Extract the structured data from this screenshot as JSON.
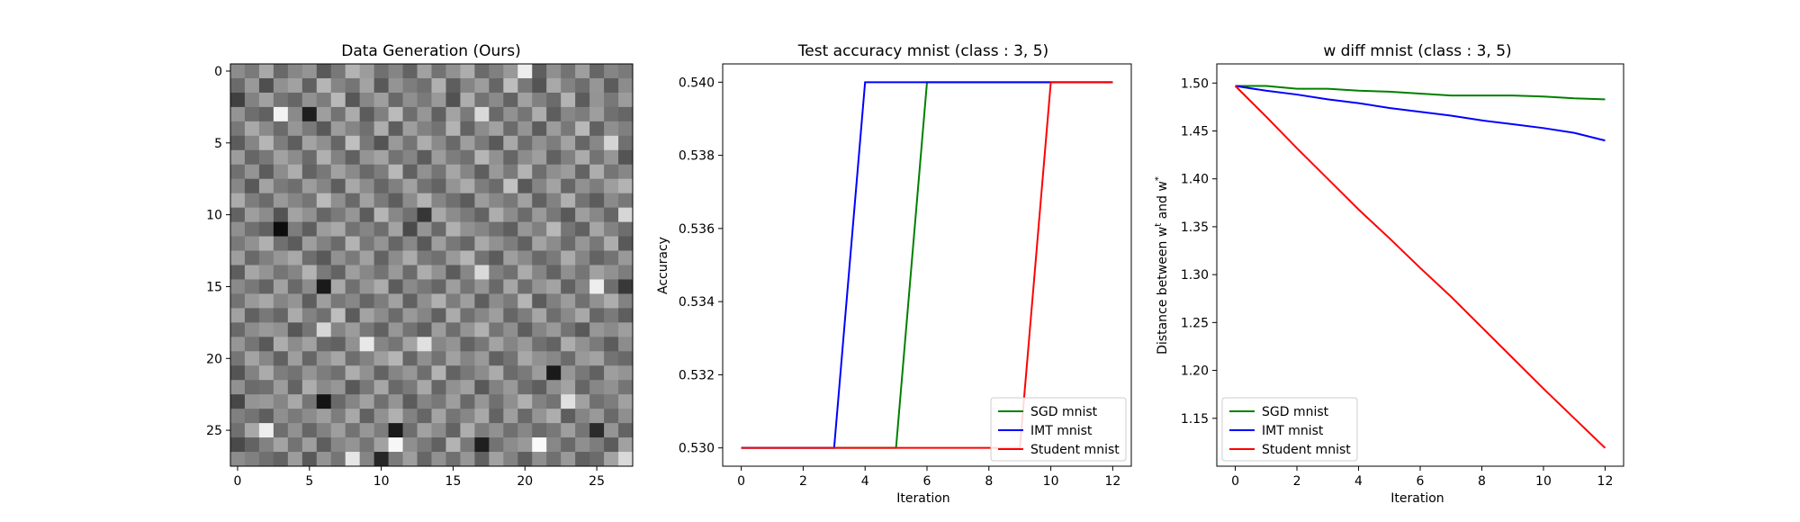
{
  "chart_data": [
    {
      "type": "heatmap",
      "title": "Data Generation (Ours)",
      "xlabel": "",
      "ylabel": "",
      "xticks": [
        0,
        5,
        10,
        15,
        20,
        25
      ],
      "yticks": [
        0,
        5,
        10,
        15,
        20,
        25
      ],
      "colormap": "gray",
      "rows": 28,
      "cols": 28,
      "values": [
        [
          0.55,
          0.48,
          0.66,
          0.41,
          0.53,
          0.58,
          0.35,
          0.47,
          0.7,
          0.61,
          0.44,
          0.52,
          0.39,
          0.63,
          0.45,
          0.57,
          0.68,
          0.42,
          0.5,
          0.6,
          0.93,
          0.37,
          0.56,
          0.45,
          0.62,
          0.4,
          0.52,
          0.48
        ],
        [
          0.42,
          0.6,
          0.31,
          0.57,
          0.63,
          0.38,
          0.71,
          0.52,
          0.46,
          0.64,
          0.35,
          0.58,
          0.49,
          0.44,
          0.69,
          0.37,
          0.52,
          0.61,
          0.4,
          0.74,
          0.47,
          0.33,
          0.66,
          0.51,
          0.43,
          0.59,
          0.36,
          0.55
        ],
        [
          0.25,
          0.51,
          0.63,
          0.46,
          0.4,
          0.57,
          0.49,
          0.72,
          0.34,
          0.53,
          0.62,
          0.41,
          0.56,
          0.48,
          0.6,
          0.32,
          0.68,
          0.45,
          0.54,
          0.39,
          0.63,
          0.5,
          0.42,
          0.7,
          0.36,
          0.58,
          0.47,
          0.61
        ],
        [
          0.58,
          0.43,
          0.38,
          0.95,
          0.54,
          0.12,
          0.62,
          0.45,
          0.67,
          0.36,
          0.5,
          0.73,
          0.43,
          0.59,
          0.38,
          0.64,
          0.48,
          0.85,
          0.41,
          0.57,
          0.46,
          0.68,
          0.37,
          0.53,
          0.49,
          0.62,
          0.44,
          0.4
        ],
        [
          0.47,
          0.66,
          0.54,
          0.42,
          0.59,
          0.48,
          0.35,
          0.61,
          0.52,
          0.44,
          0.68,
          0.37,
          0.62,
          0.51,
          0.45,
          0.7,
          0.39,
          0.55,
          0.63,
          0.42,
          0.58,
          0.36,
          0.61,
          0.47,
          0.72,
          0.38,
          0.56,
          0.5
        ],
        [
          0.36,
          0.52,
          0.71,
          0.49,
          0.37,
          0.64,
          0.56,
          0.4,
          0.75,
          0.47,
          0.33,
          0.6,
          0.46,
          0.68,
          0.54,
          0.41,
          0.62,
          0.48,
          0.35,
          0.66,
          0.43,
          0.57,
          0.49,
          0.64,
          0.4,
          0.53,
          0.83,
          0.44
        ],
        [
          0.61,
          0.4,
          0.47,
          0.63,
          0.55,
          0.42,
          0.69,
          0.51,
          0.38,
          0.58,
          0.64,
          0.45,
          0.52,
          0.36,
          0.61,
          0.49,
          0.44,
          0.71,
          0.57,
          0.4,
          0.55,
          0.62,
          0.38,
          0.5,
          0.67,
          0.45,
          0.59,
          0.33
        ],
        [
          0.44,
          0.58,
          0.36,
          0.55,
          0.68,
          0.39,
          0.47,
          0.63,
          0.54,
          0.41,
          0.49,
          0.72,
          0.38,
          0.57,
          0.46,
          0.65,
          0.52,
          0.37,
          0.6,
          0.48,
          0.7,
          0.43,
          0.56,
          0.61,
          0.39,
          0.68,
          0.46,
          0.53
        ],
        [
          0.53,
          0.35,
          0.64,
          0.48,
          0.43,
          0.61,
          0.52,
          0.37,
          0.66,
          0.55,
          0.4,
          0.5,
          0.63,
          0.45,
          0.39,
          0.58,
          0.67,
          0.49,
          0.42,
          0.76,
          0.35,
          0.52,
          0.64,
          0.4,
          0.57,
          0.49,
          0.62,
          0.7
        ],
        [
          0.67,
          0.49,
          0.42,
          0.6,
          0.52,
          0.46,
          0.73,
          0.56,
          0.41,
          0.63,
          0.48,
          0.37,
          0.55,
          0.7,
          0.52,
          0.44,
          0.36,
          0.61,
          0.53,
          0.47,
          0.63,
          0.38,
          0.51,
          0.69,
          0.45,
          0.36,
          0.54,
          0.47
        ],
        [
          0.39,
          0.62,
          0.55,
          0.33,
          0.64,
          0.57,
          0.4,
          0.48,
          0.59,
          0.36,
          0.71,
          0.53,
          0.44,
          0.21,
          0.66,
          0.55,
          0.48,
          0.39,
          0.68,
          0.55,
          0.42,
          0.6,
          0.47,
          0.35,
          0.62,
          0.53,
          0.4,
          0.84
        ],
        [
          0.56,
          0.44,
          0.38,
          0.05,
          0.49,
          0.37,
          0.61,
          0.66,
          0.45,
          0.52,
          0.43,
          0.64,
          0.29,
          0.58,
          0.41,
          0.69,
          0.57,
          0.52,
          0.44,
          0.37,
          0.59,
          0.5,
          0.72,
          0.46,
          0.38,
          0.65,
          0.51,
          0.43
        ],
        [
          0.48,
          0.57,
          0.69,
          0.44,
          0.36,
          0.62,
          0.51,
          0.42,
          0.7,
          0.47,
          0.58,
          0.4,
          0.53,
          0.35,
          0.62,
          0.47,
          0.4,
          0.66,
          0.57,
          0.49,
          0.38,
          0.64,
          0.55,
          0.42,
          0.59,
          0.47,
          0.68,
          0.35
        ],
        [
          0.62,
          0.41,
          0.5,
          0.59,
          0.66,
          0.43,
          0.35,
          0.57,
          0.48,
          0.63,
          0.39,
          0.55,
          0.67,
          0.48,
          0.44,
          0.6,
          0.71,
          0.45,
          0.36,
          0.62,
          0.54,
          0.41,
          0.48,
          0.67,
          0.52,
          0.39,
          0.45,
          0.6
        ],
        [
          0.37,
          0.65,
          0.58,
          0.46,
          0.52,
          0.7,
          0.48,
          0.39,
          0.62,
          0.53,
          0.45,
          0.6,
          0.42,
          0.68,
          0.57,
          0.36,
          0.53,
          0.85,
          0.5,
          0.44,
          0.67,
          0.52,
          0.39,
          0.56,
          0.46,
          0.63,
          0.57,
          0.49
        ],
        [
          0.54,
          0.47,
          0.39,
          0.63,
          0.41,
          0.55,
          0.1,
          0.66,
          0.44,
          0.58,
          0.67,
          0.36,
          0.54,
          0.47,
          0.4,
          0.62,
          0.46,
          0.58,
          0.41,
          0.65,
          0.43,
          0.58,
          0.64,
          0.38,
          0.52,
          0.93,
          0.43,
          0.22
        ],
        [
          0.45,
          0.6,
          0.66,
          0.52,
          0.58,
          0.37,
          0.62,
          0.47,
          0.53,
          0.4,
          0.49,
          0.63,
          0.38,
          0.56,
          0.69,
          0.49,
          0.62,
          0.37,
          0.55,
          0.48,
          0.71,
          0.36,
          0.5,
          0.61,
          0.44,
          0.57,
          0.68,
          0.51
        ],
        [
          0.63,
          0.38,
          0.47,
          0.4,
          0.67,
          0.51,
          0.44,
          0.74,
          0.36,
          0.64,
          0.55,
          0.42,
          0.6,
          0.52,
          0.38,
          0.67,
          0.44,
          0.53,
          0.62,
          0.4,
          0.49,
          0.65,
          0.43,
          0.54,
          0.66,
          0.4,
          0.48,
          0.37
        ],
        [
          0.41,
          0.55,
          0.6,
          0.57,
          0.34,
          0.46,
          0.84,
          0.52,
          0.61,
          0.47,
          0.38,
          0.59,
          0.45,
          0.37,
          0.61,
          0.43,
          0.58,
          0.69,
          0.46,
          0.56,
          0.37,
          0.52,
          0.6,
          0.45,
          0.35,
          0.59,
          0.54,
          0.62
        ],
        [
          0.59,
          0.46,
          0.35,
          0.68,
          0.55,
          0.63,
          0.41,
          0.38,
          0.57,
          0.91,
          0.52,
          0.46,
          0.64,
          0.88,
          0.53,
          0.58,
          0.39,
          0.47,
          0.64,
          0.52,
          0.6,
          0.44,
          0.39,
          0.68,
          0.57,
          0.48,
          0.36,
          0.55
        ],
        [
          0.46,
          0.64,
          0.53,
          0.38,
          0.62,
          0.4,
          0.57,
          0.65,
          0.43,
          0.51,
          0.62,
          0.71,
          0.4,
          0.56,
          0.45,
          0.63,
          0.52,
          0.6,
          0.38,
          0.45,
          0.66,
          0.57,
          0.53,
          0.42,
          0.6,
          0.64,
          0.45,
          0.41
        ],
        [
          0.33,
          0.51,
          0.67,
          0.49,
          0.45,
          0.58,
          0.49,
          0.44,
          0.68,
          0.57,
          0.39,
          0.52,
          0.59,
          0.43,
          0.7,
          0.39,
          0.47,
          0.55,
          0.67,
          0.42,
          0.48,
          0.61,
          0.1,
          0.59,
          0.47,
          0.38,
          0.62,
          0.58
        ],
        [
          0.57,
          0.42,
          0.44,
          0.61,
          0.39,
          0.68,
          0.54,
          0.59,
          0.35,
          0.47,
          0.65,
          0.41,
          0.48,
          0.66,
          0.4,
          0.57,
          0.63,
          0.35,
          0.51,
          0.6,
          0.43,
          0.37,
          0.56,
          0.64,
          0.4,
          0.53,
          0.57,
          0.46
        ],
        [
          0.28,
          0.58,
          0.6,
          0.52,
          0.66,
          0.46,
          0.08,
          0.41,
          0.52,
          0.63,
          0.44,
          0.58,
          0.36,
          0.52,
          0.47,
          0.62,
          0.41,
          0.59,
          0.44,
          0.56,
          0.69,
          0.51,
          0.45,
          0.88,
          0.63,
          0.44,
          0.49,
          0.63
        ],
        [
          0.5,
          0.45,
          0.37,
          0.56,
          0.48,
          0.55,
          0.62,
          0.49,
          0.66,
          0.38,
          0.57,
          0.69,
          0.51,
          0.4,
          0.64,
          0.46,
          0.53,
          0.66,
          0.39,
          0.62,
          0.41,
          0.58,
          0.68,
          0.37,
          0.52,
          0.6,
          0.41,
          0.56
        ],
        [
          0.44,
          0.66,
          0.93,
          0.43,
          0.57,
          0.4,
          0.51,
          0.62,
          0.45,
          0.59,
          0.49,
          0.1,
          0.43,
          0.63,
          0.55,
          0.39,
          0.68,
          0.49,
          0.57,
          0.44,
          0.53,
          0.42,
          0.47,
          0.62,
          0.46,
          0.17,
          0.58,
          0.39
        ],
        [
          0.29,
          0.39,
          0.51,
          0.64,
          0.45,
          0.62,
          0.37,
          0.53,
          0.58,
          0.46,
          0.63,
          0.97,
          0.56,
          0.48,
          0.38,
          0.7,
          0.47,
          0.12,
          0.45,
          0.55,
          0.6,
          0.98,
          0.53,
          0.41,
          0.56,
          0.49,
          0.36,
          0.63
        ],
        [
          0.55,
          0.5,
          0.44,
          0.39,
          0.61,
          0.35,
          0.58,
          0.46,
          0.9,
          0.52,
          0.15,
          0.48,
          0.62,
          0.4,
          0.57,
          0.44,
          0.59,
          0.38,
          0.63,
          0.51,
          0.37,
          0.56,
          0.44,
          0.6,
          0.38,
          0.42,
          0.64,
          0.85
        ]
      ]
    },
    {
      "type": "line",
      "title": "Test accuracy mnist (class : 3, 5)",
      "xlabel": "Iteration",
      "ylabel": "Accuracy",
      "xlim": [
        -0.6,
        12.6
      ],
      "ylim": [
        0.5295,
        0.5405
      ],
      "xticks": [
        "0",
        "2",
        "4",
        "6",
        "8",
        "10",
        "12"
      ],
      "yticks": [
        "0.530",
        "0.532",
        "0.534",
        "0.536",
        "0.538",
        "0.540"
      ],
      "x": [
        0,
        1,
        2,
        3,
        4,
        5,
        6,
        7,
        8,
        9,
        10,
        11,
        12
      ],
      "series": [
        {
          "name": "SGD mnist",
          "color": "#008000",
          "values": [
            0.53,
            0.53,
            0.53,
            0.53,
            0.53,
            0.53,
            0.54,
            0.54,
            0.54,
            0.54,
            0.54,
            0.54,
            0.54
          ]
        },
        {
          "name": "IMT mnist",
          "color": "#0000ff",
          "values": [
            0.53,
            0.53,
            0.53,
            0.53,
            0.54,
            0.54,
            0.54,
            0.54,
            0.54,
            0.54,
            0.54,
            0.54,
            0.54
          ]
        },
        {
          "name": "Student mnist",
          "color": "#ff0000",
          "values": [
            0.53,
            0.53,
            0.53,
            0.53,
            0.53,
            0.53,
            0.53,
            0.53,
            0.53,
            0.53,
            0.54,
            0.54,
            0.54
          ]
        }
      ],
      "legend": "lower-right",
      "grid": false
    },
    {
      "type": "line",
      "title": "w diff mnist (class : 3, 5)",
      "xlabel": "Iteration",
      "ylabel": "Distance between w<tex>and w*",
      "xlim": [
        -0.6,
        12.6
      ],
      "ylim": [
        1.1,
        1.52
      ],
      "xticks": [
        "0",
        "2",
        "4",
        "6",
        "8",
        "10",
        "12"
      ],
      "yticks": [
        "1.15",
        "1.20",
        "1.25",
        "1.30",
        "1.35",
        "1.40",
        "1.45",
        "1.50"
      ],
      "x": [
        0,
        1,
        2,
        3,
        4,
        5,
        6,
        7,
        8,
        9,
        10,
        11,
        12
      ],
      "series": [
        {
          "name": "SGD mnist",
          "color": "#008000",
          "values": [
            1.497,
            1.497,
            1.494,
            1.494,
            1.492,
            1.491,
            1.489,
            1.487,
            1.487,
            1.487,
            1.486,
            1.484,
            1.483
          ]
        },
        {
          "name": "IMT mnist",
          "color": "#0000ff",
          "values": [
            1.497,
            1.492,
            1.488,
            1.483,
            1.479,
            1.474,
            1.47,
            1.466,
            1.461,
            1.457,
            1.453,
            1.448,
            1.44
          ]
        },
        {
          "name": "Student mnist",
          "color": "#ff0000",
          "values": [
            1.497,
            1.465,
            1.432,
            1.4,
            1.368,
            1.338,
            1.307,
            1.277,
            1.245,
            1.213,
            1.181,
            1.15,
            1.119
          ]
        }
      ],
      "legend": "lower-left",
      "grid": false
    }
  ]
}
